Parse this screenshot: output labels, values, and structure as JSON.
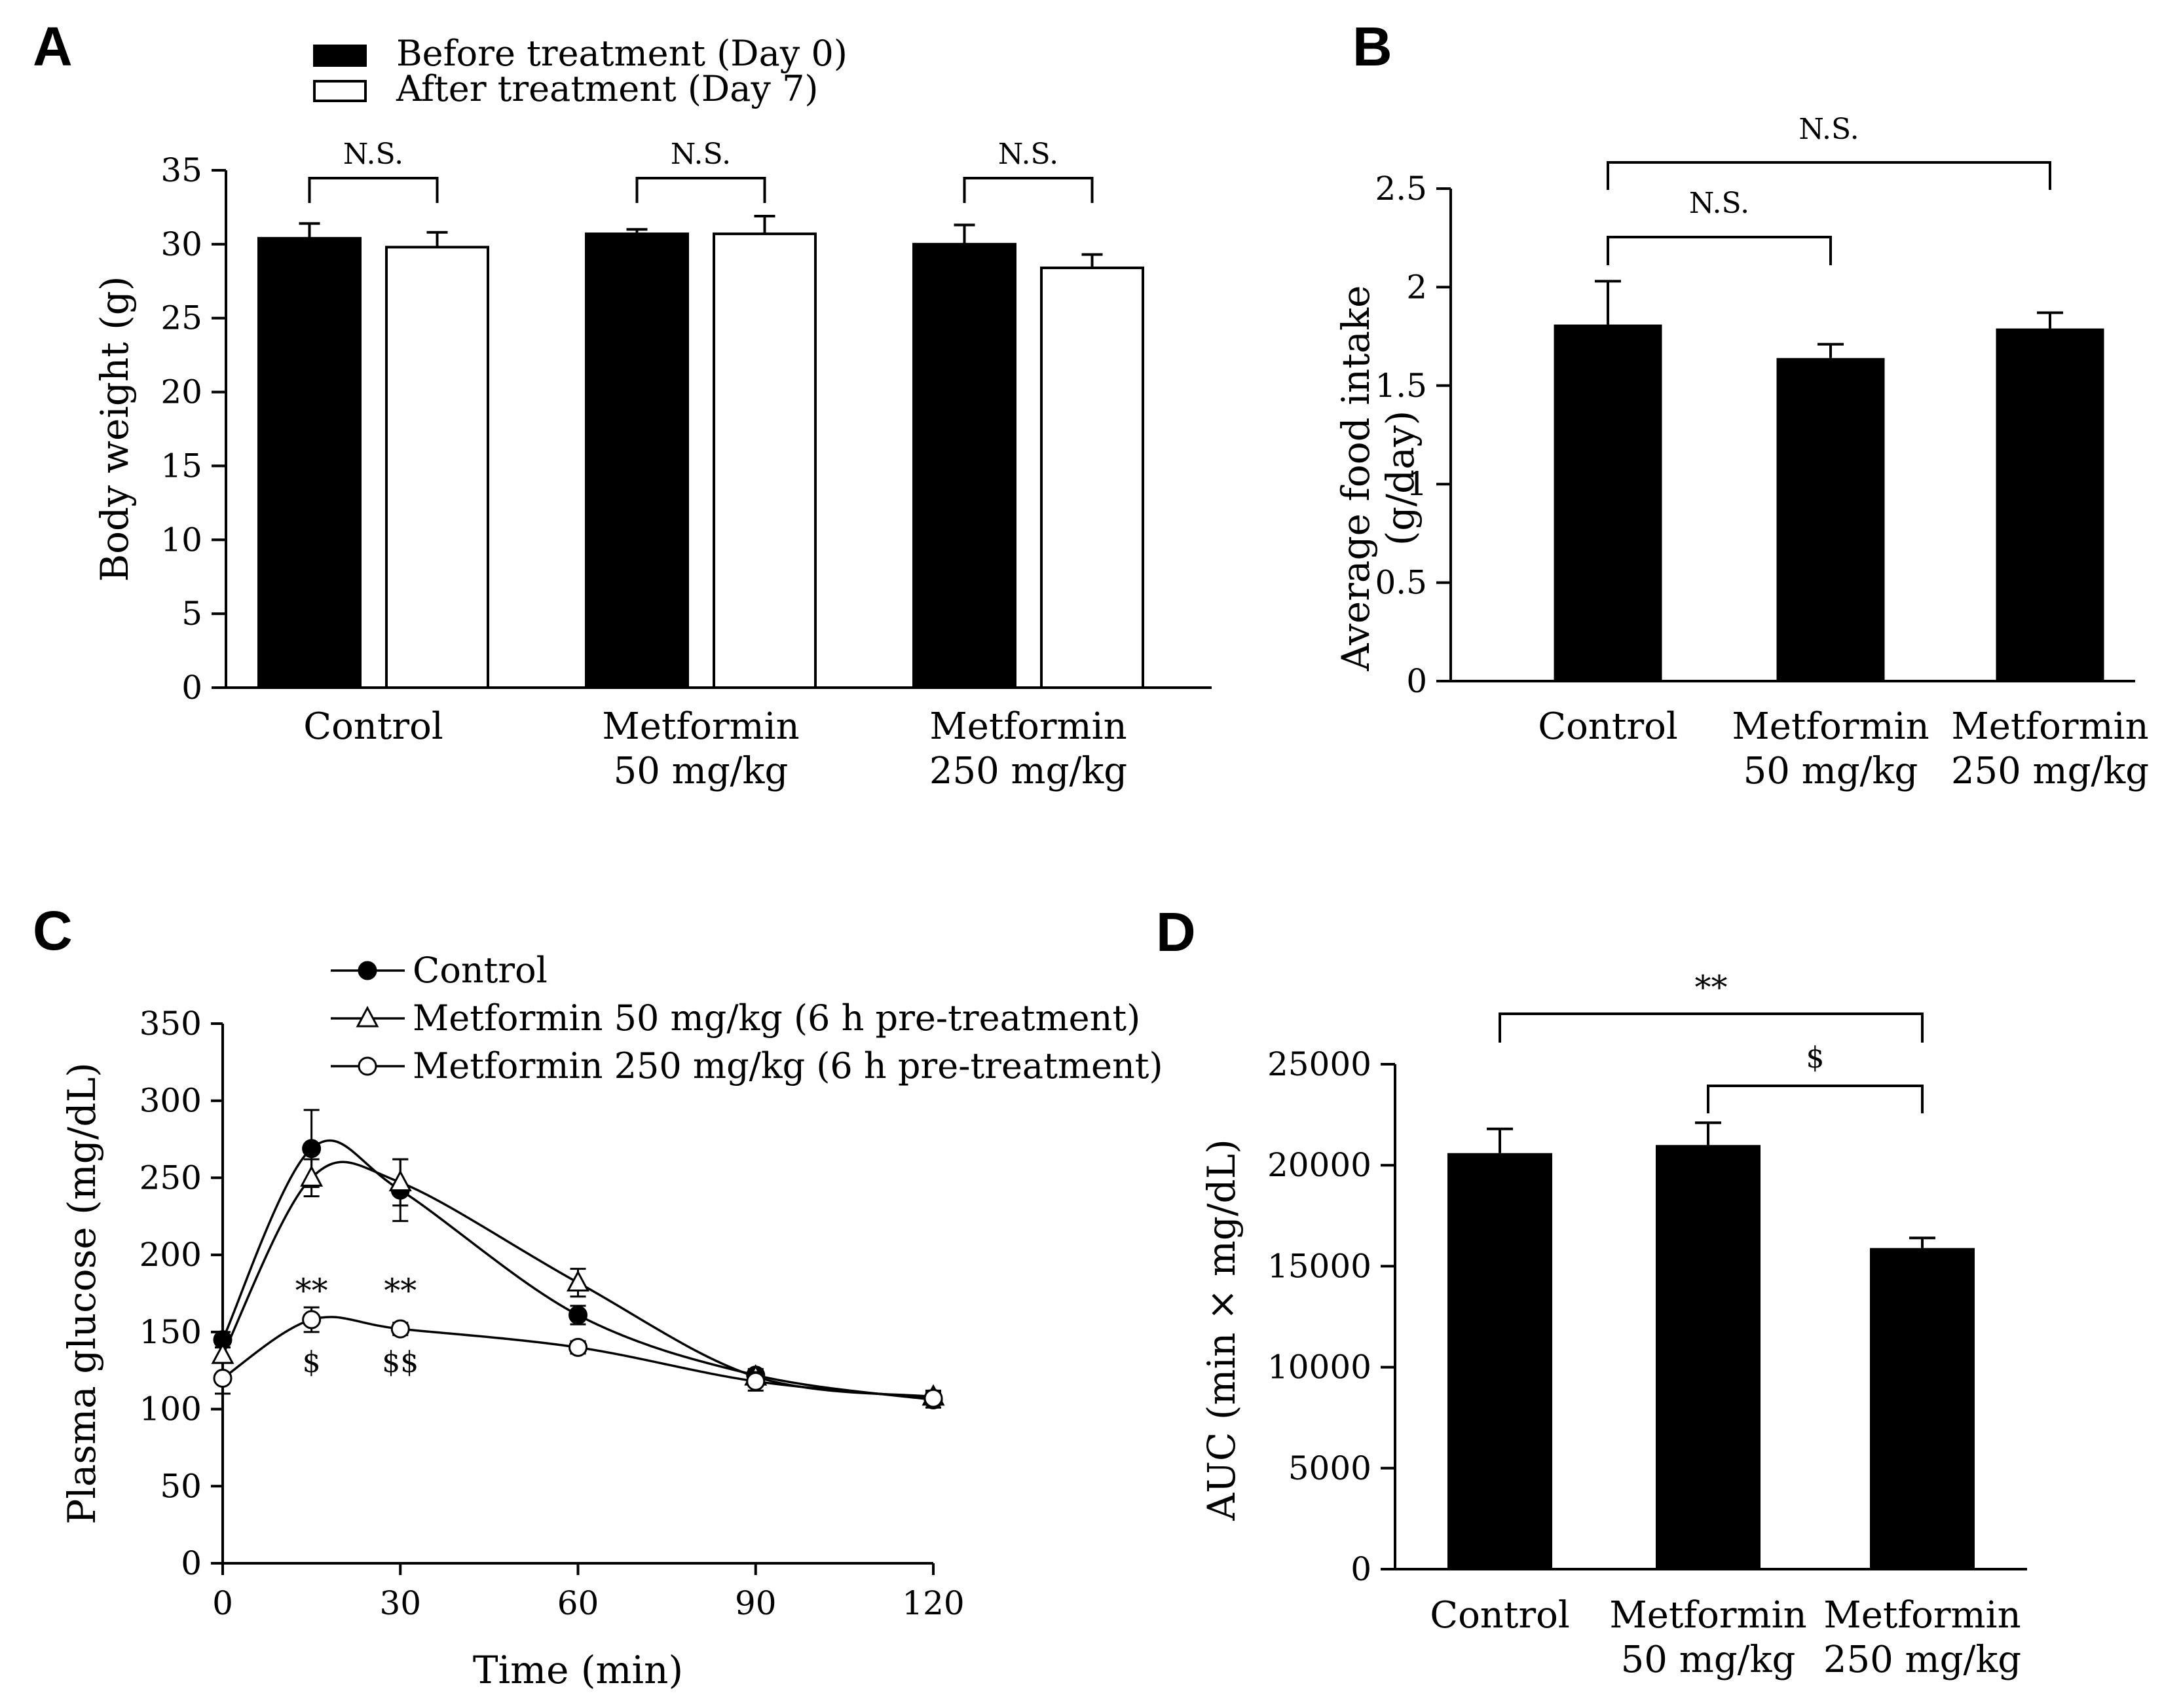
{
  "chart_data": [
    {
      "panel": "A",
      "type": "bar",
      "xlabel": "",
      "ylabel": "Body weight (g)",
      "ylim": [
        0,
        35
      ],
      "yticks": [
        0,
        5,
        10,
        15,
        20,
        25,
        30,
        35
      ],
      "categories": [
        [
          "Control"
        ],
        [
          "Metformin",
          "50 mg/kg"
        ],
        [
          "Metformin",
          "250 mg/kg"
        ]
      ],
      "series": [
        {
          "name": "Before treatment (Day 0)",
          "color": "#000000",
          "values": [
            30.4,
            30.7,
            30.0
          ],
          "errors": [
            1.0,
            0.3,
            1.3
          ]
        },
        {
          "name": "After treatment (Day 7)",
          "color": "#ffffff",
          "values": [
            29.8,
            30.7,
            28.4
          ],
          "errors": [
            1.0,
            1.2,
            0.9
          ]
        }
      ],
      "brackets": [
        {
          "cat": 0,
          "text": "N.S."
        },
        {
          "cat": 1,
          "text": "N.S."
        },
        {
          "cat": 2,
          "text": "N.S."
        }
      ]
    },
    {
      "panel": "B",
      "type": "bar",
      "xlabel": "",
      "ylabel": [
        "Average food intake",
        "(g/day)"
      ],
      "ylim": [
        0,
        2.5
      ],
      "yticks": [
        0,
        0.5,
        1,
        1.5,
        2,
        2.5
      ],
      "categories": [
        [
          "Control"
        ],
        [
          "Metformin",
          "50 mg/kg"
        ],
        [
          "Metformin",
          "250 mg/kg"
        ]
      ],
      "values": [
        1.81,
        1.64,
        1.79
      ],
      "errors": [
        0.22,
        0.07,
        0.08
      ],
      "color": "#000000",
      "brackets": [
        {
          "from": 0,
          "to": 1,
          "text": "N.S."
        },
        {
          "from": 0,
          "to": 2,
          "text": "N.S."
        }
      ]
    },
    {
      "panel": "C",
      "type": "line",
      "xlabel": "Time (min)",
      "ylabel": "Plasma glucose (mg/dL)",
      "xlim": [
        0,
        120
      ],
      "ylim": [
        0,
        350
      ],
      "xticks": [
        0,
        30,
        60,
        90,
        120
      ],
      "yticks": [
        0,
        50,
        100,
        150,
        200,
        250,
        300,
        350
      ],
      "x": [
        0,
        15,
        30,
        60,
        90,
        120
      ],
      "series": [
        {
          "name": "Control",
          "marker": "filled-circle",
          "values": [
            145,
            269,
            242,
            161,
            122,
            106
          ],
          "errors": [
            5,
            25,
            20,
            6,
            4,
            5
          ]
        },
        {
          "name": "Metformin 50 mg/kg (6 h pre-treatment)",
          "marker": "open-triangle",
          "values": [
            135,
            250,
            247,
            182,
            121,
            108
          ],
          "errors": [
            5,
            12,
            15,
            9,
            4,
            4
          ]
        },
        {
          "name": "Metformin 250 mg/kg (6 h pre-treatment)",
          "marker": "open-circle",
          "values": [
            120,
            158,
            152,
            140,
            118,
            107
          ],
          "errors": [
            10,
            8,
            4,
            4,
            6,
            4
          ]
        }
      ],
      "annotations": [
        {
          "x": 15,
          "above": "**",
          "below": "$"
        },
        {
          "x": 30,
          "above": "**",
          "below": "$$"
        }
      ]
    },
    {
      "panel": "D",
      "type": "bar",
      "xlabel": "",
      "ylabel": "AUC (min × mg/dL)",
      "ylim": [
        0,
        25000
      ],
      "yticks": [
        0,
        5000,
        10000,
        15000,
        20000,
        25000
      ],
      "categories": [
        [
          "Control"
        ],
        [
          "Metformin",
          "50 mg/kg"
        ],
        [
          "Metformin",
          "250 mg/kg"
        ]
      ],
      "values": [
        20600,
        21000,
        15900
      ],
      "errors": [
        1200,
        1100,
        500
      ],
      "color": "#000000",
      "brackets": [
        {
          "from": 0,
          "to": 2,
          "text": "**"
        },
        {
          "from": 1,
          "to": 2,
          "text": "$"
        }
      ]
    }
  ]
}
